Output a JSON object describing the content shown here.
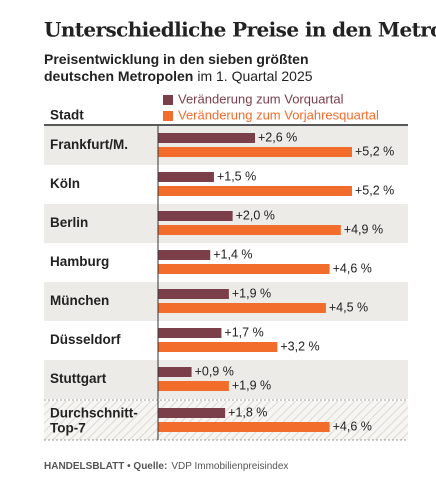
{
  "title": "Unterschiedliche Preise in den Metropolen",
  "subtitle": "Preisentwicklung in den sieben größten deutschen Metropolen",
  "subtitle_period": "im 1. Quartal 2025",
  "footer": {
    "brand": "HANDELSBLATT • Quelle:",
    "source": "VDP Immobilienpreisindex"
  },
  "chart_data": {
    "type": "bar",
    "orientation": "horizontal",
    "category_header": "Stadt",
    "categories": [
      "Frankfurt/M.",
      "Köln",
      "Berlin",
      "Hamburg",
      "München",
      "Düsseldorf",
      "Stuttgart",
      "Durchschnitt-Top-7"
    ],
    "series": [
      {
        "name": "Veränderung zum Vorquartal",
        "color": "#7b3f4a",
        "values": [
          2.6,
          1.5,
          2.0,
          1.4,
          1.9,
          1.7,
          0.9,
          1.8
        ],
        "value_labels": [
          "+2,6 %",
          "+1,5 %",
          "+2,0 %",
          "+1,4 %",
          "+1,9 %",
          "+1,7 %",
          "+0,9 %",
          "+1,8 %"
        ]
      },
      {
        "name": "Veränderung zum Vorjahresquartal",
        "color": "#f26c2b",
        "values": [
          5.2,
          5.2,
          4.9,
          4.6,
          4.5,
          3.2,
          1.9,
          4.6
        ],
        "value_labels": [
          "+5,2 %",
          "+5,2 %",
          "+4,9 %",
          "+4,6 %",
          "+4,5 %",
          "+3,2 %",
          "+1,9 %",
          "+4,6 %"
        ]
      }
    ]
  }
}
